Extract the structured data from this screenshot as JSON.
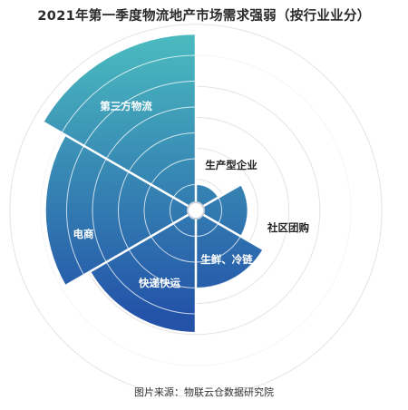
{
  "title": "2021年第一季度物流地产市场需求强弱（按行业业分）",
  "source": "图片来源：物联云仓数据研究院",
  "colors": {
    "gradient_top": "#4cbfc0",
    "gradient_bottom": "#2352a8",
    "label": "#ffffff",
    "outside_label": "#222222",
    "ring": "#e4e4e4",
    "center_stroke": "#c9d2dc"
  },
  "chart_data": {
    "type": "polar-area",
    "categories": [
      "生产型企业",
      "社区团购",
      "生鲜、冷链",
      "快递快运",
      "电商",
      "第三方物流"
    ],
    "values": [
      1.0,
      2.0,
      3.0,
      4.7,
      5.8,
      6.8
    ],
    "rings": 6,
    "grid": true,
    "legend": "none"
  }
}
